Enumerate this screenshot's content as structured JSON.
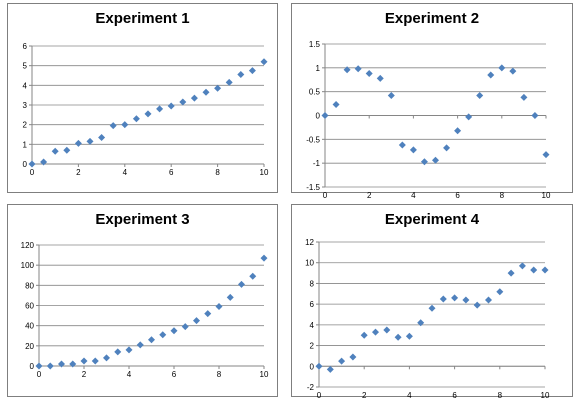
{
  "chart_data": [
    {
      "type": "scatter",
      "title": "Experiment 1",
      "xlabel": "",
      "ylabel": "",
      "xlim": [
        0,
        10
      ],
      "ylim": [
        0,
        6
      ],
      "xticks": [
        0,
        2,
        4,
        6,
        8,
        10
      ],
      "yticks": [
        0,
        1,
        2,
        3,
        4,
        5,
        6
      ],
      "gridlines": "horizontal",
      "marker_color": "#4F81BD",
      "x": [
        0,
        0.5,
        1,
        1.5,
        2,
        2.5,
        3,
        3.5,
        4,
        4.5,
        5,
        5.5,
        6,
        6.5,
        7,
        7.5,
        8,
        8.5,
        9,
        9.5,
        10
      ],
      "y": [
        0,
        0.1,
        0.65,
        0.7,
        1.05,
        1.15,
        1.35,
        1.95,
        2.0,
        2.3,
        2.55,
        2.8,
        2.95,
        3.15,
        3.35,
        3.65,
        3.85,
        4.15,
        4.55,
        4.75,
        5.2
      ]
    },
    {
      "type": "scatter",
      "title": "Experiment 2",
      "xlabel": "",
      "ylabel": "",
      "xlim": [
        0,
        10
      ],
      "ylim": [
        -1.5,
        1.5
      ],
      "xticks": [
        0,
        2,
        4,
        6,
        8,
        10
      ],
      "yticks": [
        -1.5,
        -1,
        -0.5,
        0,
        0.5,
        1,
        1.5
      ],
      "gridlines": "horizontal",
      "marker_color": "#4F81BD",
      "x": [
        0,
        0.5,
        1,
        1.5,
        2,
        2.5,
        3,
        3.5,
        4,
        4.5,
        5,
        5.5,
        6,
        6.5,
        7,
        7.5,
        8,
        8.5,
        9,
        9.5,
        10
      ],
      "y": [
        0,
        0.23,
        0.96,
        0.98,
        0.88,
        0.78,
        0.42,
        -0.62,
        -0.72,
        -0.97,
        -0.94,
        -0.68,
        -0.32,
        -0.03,
        0.42,
        0.85,
        1.0,
        0.93,
        0.38,
        0.0,
        -0.82
      ]
    },
    {
      "type": "scatter",
      "title": "Experiment 3",
      "xlabel": "",
      "ylabel": "",
      "xlim": [
        0,
        10
      ],
      "ylim": [
        0,
        120
      ],
      "xticks": [
        0,
        2,
        4,
        6,
        8,
        10
      ],
      "yticks": [
        0,
        20,
        40,
        60,
        80,
        100,
        120
      ],
      "gridlines": "horizontal",
      "marker_color": "#4F81BD",
      "x": [
        0,
        0.5,
        1,
        1.5,
        2,
        2.5,
        3,
        3.5,
        4,
        4.5,
        5,
        5.5,
        6,
        6.5,
        7,
        7.5,
        8,
        8.5,
        9,
        9.5,
        10
      ],
      "y": [
        0,
        0,
        2,
        2,
        5,
        5,
        8,
        14,
        16,
        21,
        26,
        31,
        35,
        39,
        45,
        52,
        59,
        68,
        81,
        89,
        107
      ]
    },
    {
      "type": "scatter",
      "title": "Experiment 4",
      "xlabel": "",
      "ylabel": "",
      "xlim": [
        0,
        10
      ],
      "ylim": [
        -2,
        12
      ],
      "xticks": [
        0,
        2,
        4,
        6,
        8,
        10
      ],
      "yticks": [
        -2,
        0,
        2,
        4,
        6,
        8,
        10,
        12
      ],
      "gridlines": "horizontal",
      "marker_color": "#4F81BD",
      "x": [
        0,
        0.5,
        1,
        1.5,
        2,
        2.5,
        3,
        3.5,
        4,
        4.5,
        5,
        5.5,
        6,
        6.5,
        7,
        7.5,
        8,
        8.5,
        9,
        9.5,
        10
      ],
      "y": [
        0,
        -0.3,
        0.5,
        0.9,
        3.0,
        3.3,
        3.5,
        2.8,
        2.9,
        4.2,
        5.6,
        6.5,
        6.6,
        6.4,
        5.9,
        6.4,
        7.2,
        9.0,
        9.7,
        9.3,
        9.3
      ]
    }
  ]
}
